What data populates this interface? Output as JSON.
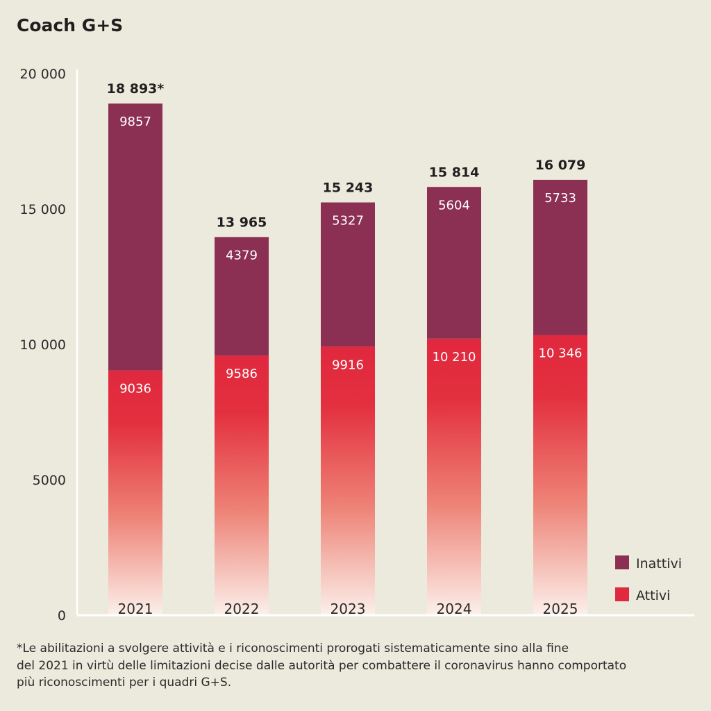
{
  "chart_data": {
    "type": "bar",
    "stacked": true,
    "title": "Coach G+S",
    "categories": [
      "2021",
      "2022",
      "2023",
      "2024",
      "2025"
    ],
    "series": [
      {
        "name": "Attivi",
        "values": [
          9036,
          9586,
          9916,
          10210,
          10346
        ],
        "labels": [
          "9036",
          "9586",
          "9916",
          "10 210",
          "10 346"
        ],
        "color": "#e0283e"
      },
      {
        "name": "Inattivi",
        "values": [
          9857,
          4379,
          5327,
          5604,
          5733
        ],
        "labels": [
          "9857",
          "4379",
          "5327",
          "5604",
          "5733"
        ],
        "color": "#8b3052"
      }
    ],
    "totals": [
      18893,
      13965,
      15243,
      15814,
      16079
    ],
    "total_labels": [
      "18 893*",
      "13 965",
      "15 243",
      "15 814",
      "16 079"
    ],
    "yticks": [
      0,
      5000,
      10000,
      15000,
      20000
    ],
    "ytick_labels": [
      "0",
      "5000",
      "10 000",
      "15 000",
      "20 000"
    ],
    "ylim": [
      0,
      20000
    ],
    "grid": false,
    "legend_position": "bottom-right",
    "legend": [
      "Inattivi",
      "Attivi"
    ]
  },
  "footnote": {
    "lines": [
      "*Le abilitazioni a svolgere attività e i riconoscimenti prorogati sistematicamente sino alla fine",
      "del 2021 in virtù delle limitazioni decise dalle autorità per combattere il coronavirus hanno comportato",
      "più riconoscimenti per i quadri G+S."
    ]
  },
  "colors": {
    "background": "#ece9dd",
    "inattivi": "#8b3052",
    "attivi": "#e0283e"
  }
}
